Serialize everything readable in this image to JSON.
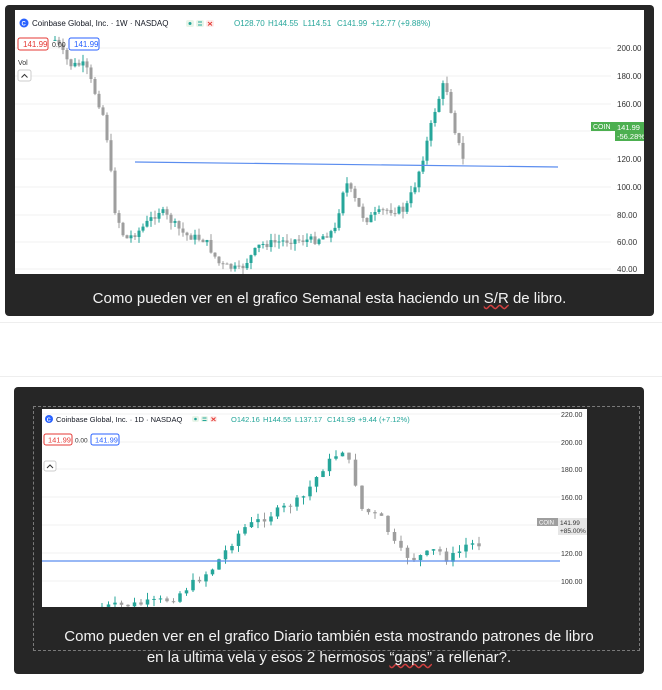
{
  "weekly": {
    "symbol_title": "Coinbase Global, Inc. · 1W · NASDAQ",
    "ohlc": {
      "o": "O128.70",
      "h": "H144.55",
      "l": "L114.51",
      "c": "C141.99",
      "chg": "+12.77 (+9.88%)"
    },
    "sell_price": "141.99",
    "spread": "0.00",
    "buy_price": "141.99",
    "vol_label": "Vol",
    "price_tag": {
      "symbol": "COIN",
      "price": "141.99",
      "change": "-56.28%"
    },
    "y_ticks": [
      "200.00",
      "180.00",
      "160.00",
      "140.00",
      "120.00",
      "100.00",
      "80.00",
      "60.00",
      "40.00"
    ],
    "caption": {
      "before": "Como pueden ver en el grafico Semanal esta haciendo un ",
      "marked": "S/R",
      "after": " de libro."
    }
  },
  "daily": {
    "symbol_title": "Coinbase Global, Inc. · 1D · NASDAQ",
    "ohlc": {
      "o": "O142.16",
      "h": "H144.55",
      "l": "L137.17",
      "c": "C141.99",
      "chg": "+9.44 (+7.12%)"
    },
    "sell_price": "141.99",
    "spread": "0.00",
    "buy_price": "141.99",
    "price_tag": {
      "symbol": "COIN",
      "price": "141.99",
      "change": "+85.00%"
    },
    "y_ticks": [
      "220.00",
      "200.00",
      "180.00",
      "160.00",
      "140.00",
      "120.00",
      "100.00"
    ],
    "caption": {
      "line1": "Como pueden ver en el grafico Diario también esta mostrando patrones de libro",
      "line2_before": "en la ultima vela y esos 2 hermosos ",
      "line2_marked": "“gaps”",
      "line2_after": " a rellenar?."
    }
  },
  "colors": {
    "up": "#26a69a",
    "down": "#9e9e9e",
    "tag_up": "#4caf50",
    "tag_neutral": "#9e9e9e",
    "line": "#5b8def",
    "card": "#262626"
  },
  "icons": [
    "logo-icon",
    "eye-icon",
    "gear-icon",
    "close-icon",
    "chevron-up-icon"
  ]
}
